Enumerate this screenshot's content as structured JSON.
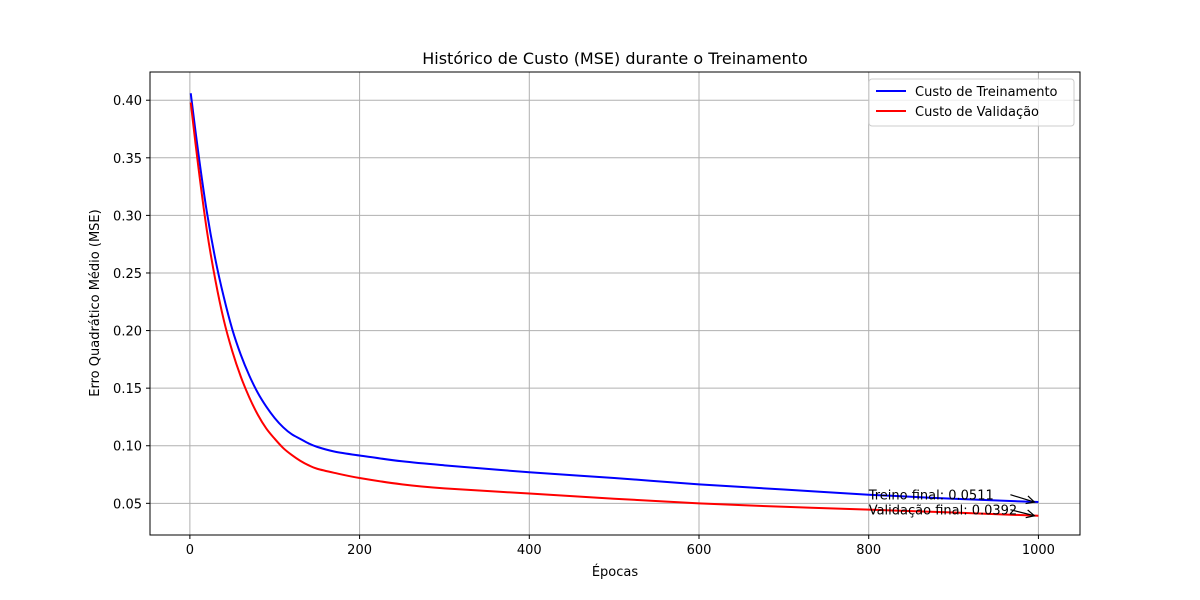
{
  "chart_data": {
    "type": "line",
    "title": "Histórico de Custo (MSE) durante o Treinamento",
    "xlabel": "Épocas",
    "ylabel": "Erro Quadrático Médio (MSE)",
    "xlim": [
      -47,
      1049
    ],
    "ylim": [
      0.0225,
      0.4245
    ],
    "xticks": [
      0,
      200,
      400,
      600,
      800,
      1000
    ],
    "yticks": [
      0.05,
      0.1,
      0.15,
      0.2,
      0.25,
      0.3,
      0.35,
      0.4
    ],
    "xtick_labels": [
      "0",
      "200",
      "400",
      "600",
      "800",
      "1000"
    ],
    "ytick_labels": [
      "0.05",
      "0.10",
      "0.15",
      "0.20",
      "0.25",
      "0.30",
      "0.35",
      "0.40"
    ],
    "grid": true,
    "legend_position": "top-right",
    "series": [
      {
        "name": "Custo de Treinamento",
        "color": "#0000ff",
        "x": [
          1,
          10,
          20,
          30,
          40,
          50,
          60,
          70,
          80,
          90,
          100,
          110,
          120,
          130,
          140,
          150,
          170,
          200,
          250,
          300,
          400,
          500,
          600,
          700,
          800,
          900,
          1000
        ],
        "values": [
          0.406,
          0.354,
          0.303,
          0.262,
          0.229,
          0.201,
          0.179,
          0.161,
          0.146,
          0.134,
          0.124,
          0.116,
          0.11,
          0.106,
          0.102,
          0.099,
          0.095,
          0.0915,
          0.0865,
          0.083,
          0.077,
          0.072,
          0.0665,
          0.062,
          0.0575,
          0.054,
          0.0511
        ]
      },
      {
        "name": "Custo de Validação",
        "color": "#ff0000",
        "x": [
          1,
          10,
          20,
          30,
          40,
          50,
          60,
          70,
          80,
          90,
          100,
          110,
          120,
          130,
          140,
          150,
          170,
          200,
          250,
          300,
          400,
          500,
          600,
          700,
          800,
          900,
          1000
        ],
        "values": [
          0.398,
          0.342,
          0.287,
          0.244,
          0.209,
          0.182,
          0.16,
          0.142,
          0.127,
          0.115,
          0.106,
          0.098,
          0.092,
          0.087,
          0.083,
          0.08,
          0.0765,
          0.072,
          0.0665,
          0.063,
          0.0585,
          0.054,
          0.05,
          0.047,
          0.0445,
          0.042,
          0.0392
        ]
      }
    ],
    "annotations": [
      {
        "text": "Treino final: 0.0511",
        "text_x": 800,
        "text_y": 0.0575,
        "arrow_x": 1000,
        "arrow_y": 0.0511
      },
      {
        "text": "Validação final: 0.0392",
        "text_x": 800,
        "text_y": 0.0445,
        "arrow_x": 1000,
        "arrow_y": 0.0392
      }
    ]
  }
}
